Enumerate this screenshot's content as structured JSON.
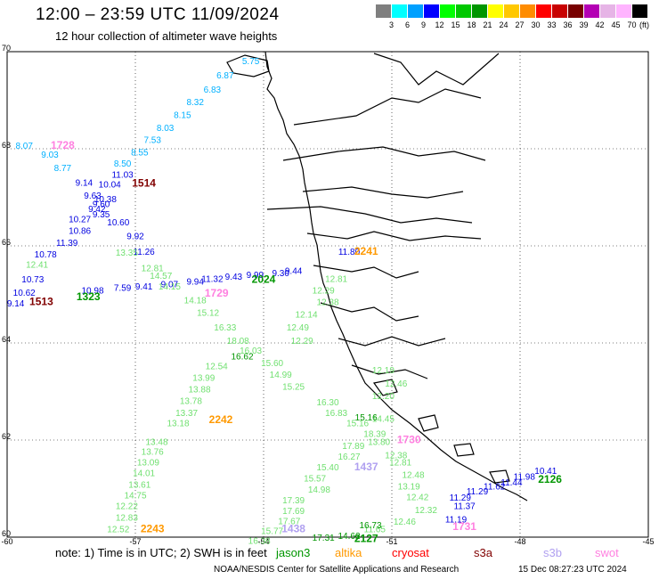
{
  "header": {
    "title": "12:00 – 23:59 UTC 11/09/2024",
    "subtitle": "12 hour collection of altimeter wave heights"
  },
  "colorbar": {
    "colors": [
      "#7f7f7f",
      "#00ffff",
      "#00a0ff",
      "#0000ff",
      "#00ff00",
      "#00c800",
      "#009600",
      "#ffff00",
      "#ffc800",
      "#ff8c00",
      "#ff0000",
      "#c80000",
      "#780000",
      "#b400b4",
      "#e6b4e6",
      "#ffb4ff",
      "#000000"
    ],
    "labels": [
      "3",
      "6",
      "9",
      "12",
      "15",
      "18",
      "21",
      "24",
      "27",
      "30",
      "33",
      "36",
      "39",
      "42",
      "45",
      "70"
    ],
    "unit": "(ft)"
  },
  "map": {
    "lat_ticks": [
      "70",
      "68",
      "66",
      "64",
      "62",
      "60"
    ],
    "lon_ticks": [
      "-60",
      "-57",
      "-54",
      "-51",
      "-48",
      "-45"
    ],
    "tracks": [
      {
        "color": "#00b0ff",
        "points": [
          {
            "lat": 68.0,
            "lon": -59.6,
            "v": "8.07"
          },
          {
            "lat": 69.74,
            "lon": -54.3,
            "v": "5.75"
          },
          {
            "lat": 69.45,
            "lon": -54.9,
            "v": "6.87"
          },
          {
            "lat": 69.16,
            "lon": -55.2,
            "v": "6.83"
          },
          {
            "lat": 68.9,
            "lon": -55.6,
            "v": "8.32"
          },
          {
            "lat": 68.63,
            "lon": -55.9,
            "v": "8.15"
          },
          {
            "lat": 68.37,
            "lon": -56.3,
            "v": "8.03"
          },
          {
            "lat": 68.12,
            "lon": -56.6,
            "v": "7.53"
          },
          {
            "lat": 67.86,
            "lon": -56.9,
            "v": "8.55"
          },
          {
            "lat": 67.63,
            "lon": -57.3,
            "v": "8.50"
          },
          {
            "lat": 67.82,
            "lon": -59.0,
            "v": "9.03"
          },
          {
            "lat": 67.54,
            "lon": -58.7,
            "v": "8.77"
          }
        ]
      },
      {
        "color": "#ff80e0",
        "points": [
          {
            "lat": 68.0,
            "lon": -58.7,
            "v": "1728",
            "id": true
          }
        ]
      },
      {
        "color": "#0000e0",
        "points": [
          {
            "lat": 67.24,
            "lon": -58.2,
            "v": "9.14"
          },
          {
            "lat": 67.4,
            "lon": -57.3,
            "v": "11.03"
          },
          {
            "lat": 67.2,
            "lon": -57.6,
            "v": "10.04"
          },
          {
            "lat": 66.97,
            "lon": -58.0,
            "v": "9.63"
          },
          {
            "lat": 66.9,
            "lon": -57.7,
            "v": "10.38"
          },
          {
            "lat": 66.8,
            "lon": -57.8,
            "v": "9.60"
          },
          {
            "lat": 66.7,
            "lon": -57.9,
            "v": "9.42"
          },
          {
            "lat": 66.59,
            "lon": -57.8,
            "v": "9.35"
          },
          {
            "lat": 66.49,
            "lon": -58.3,
            "v": "10.27"
          },
          {
            "lat": 66.42,
            "lon": -57.4,
            "v": "10.60"
          },
          {
            "lat": 66.25,
            "lon": -58.3,
            "v": "10.86"
          },
          {
            "lat": 66.14,
            "lon": -57.0,
            "v": "9.92"
          },
          {
            "lat": 66.0,
            "lon": -58.6,
            "v": "11.39"
          },
          {
            "lat": 65.76,
            "lon": -59.1,
            "v": "10.78"
          },
          {
            "lat": 65.25,
            "lon": -59.4,
            "v": "10.73"
          },
          {
            "lat": 64.97,
            "lon": -59.6,
            "v": "10.62"
          },
          {
            "lat": 64.75,
            "lon": -59.8,
            "v": "9.14"
          },
          {
            "lat": 65.02,
            "lon": -58.0,
            "v": "10.98"
          },
          {
            "lat": 65.07,
            "lon": -57.3,
            "v": "7.59"
          },
          {
            "lat": 65.1,
            "lon": -56.8,
            "v": "9.41"
          },
          {
            "lat": 65.15,
            "lon": -56.2,
            "v": "9.07"
          },
          {
            "lat": 65.2,
            "lon": -55.6,
            "v": "9.94"
          },
          {
            "lat": 65.26,
            "lon": -55.2,
            "v": "11.32"
          },
          {
            "lat": 65.3,
            "lon": -54.7,
            "v": "9.43"
          },
          {
            "lat": 65.34,
            "lon": -54.2,
            "v": "9.99"
          },
          {
            "lat": 65.38,
            "lon": -53.6,
            "v": "9.30"
          },
          {
            "lat": 65.42,
            "lon": -53.3,
            "v": "9.44"
          },
          {
            "lat": 65.82,
            "lon": -56.8,
            "v": "11.26"
          },
          {
            "lat": 65.82,
            "lon": -52.0,
            "v": "11.80"
          },
          {
            "lat": 60.88,
            "lon": -49.0,
            "v": "11.29"
          },
          {
            "lat": 60.98,
            "lon": -48.6,
            "v": "11.62"
          },
          {
            "lat": 61.06,
            "lon": -48.2,
            "v": "11.44"
          },
          {
            "lat": 61.18,
            "lon": -47.9,
            "v": "11.98"
          },
          {
            "lat": 61.3,
            "lon": -47.4,
            "v": "10.41"
          },
          {
            "lat": 60.58,
            "lon": -49.3,
            "v": "11.37"
          },
          {
            "lat": 60.3,
            "lon": -49.5,
            "v": "11.19"
          },
          {
            "lat": 60.75,
            "lon": -49.4,
            "v": "11.29"
          }
        ]
      },
      {
        "color": "#800000",
        "points": [
          {
            "lat": 67.22,
            "lon": -56.8,
            "v": "1514",
            "id": true
          },
          {
            "lat": 64.78,
            "lon": -59.2,
            "v": "1513",
            "id": true
          }
        ]
      },
      {
        "color": "#70e070",
        "points": [
          {
            "lat": 65.8,
            "lon": -57.2,
            "v": "13.35"
          },
          {
            "lat": 65.55,
            "lon": -59.3,
            "v": "12.41"
          },
          {
            "lat": 65.48,
            "lon": -56.6,
            "v": "12.81"
          },
          {
            "lat": 65.32,
            "lon": -56.4,
            "v": "14.57"
          },
          {
            "lat": 65.1,
            "lon": -56.2,
            "v": "14.15"
          },
          {
            "lat": 64.82,
            "lon": -55.6,
            "v": "14.18"
          },
          {
            "lat": 64.56,
            "lon": -55.3,
            "v": "15.12"
          },
          {
            "lat": 64.26,
            "lon": -54.9,
            "v": "16.33"
          },
          {
            "lat": 63.98,
            "lon": -54.6,
            "v": "18.08"
          },
          {
            "lat": 63.78,
            "lon": -54.3,
            "v": "16.03"
          },
          {
            "lat": 63.46,
            "lon": -55.1,
            "v": "12.54"
          },
          {
            "lat": 63.22,
            "lon": -55.4,
            "v": "13.99"
          },
          {
            "lat": 62.98,
            "lon": -55.5,
            "v": "13.88"
          },
          {
            "lat": 62.74,
            "lon": -55.7,
            "v": "13.78"
          },
          {
            "lat": 62.5,
            "lon": -55.8,
            "v": "13.37"
          },
          {
            "lat": 62.28,
            "lon": -56.0,
            "v": "13.18"
          },
          {
            "lat": 61.9,
            "lon": -56.5,
            "v": "13.48"
          },
          {
            "lat": 61.7,
            "lon": -56.6,
            "v": "13.76"
          },
          {
            "lat": 61.48,
            "lon": -56.7,
            "v": "13.09"
          },
          {
            "lat": 61.26,
            "lon": -56.8,
            "v": "14.01"
          },
          {
            "lat": 61.02,
            "lon": -56.9,
            "v": "13.61"
          },
          {
            "lat": 60.8,
            "lon": -57.0,
            "v": "14.75"
          },
          {
            "lat": 60.58,
            "lon": -57.2,
            "v": "12.22"
          },
          {
            "lat": 60.34,
            "lon": -57.2,
            "v": "12.83"
          },
          {
            "lat": 60.1,
            "lon": -57.4,
            "v": "12.52"
          },
          {
            "lat": 65.26,
            "lon": -52.3,
            "v": "12.81"
          },
          {
            "lat": 65.02,
            "lon": -52.6,
            "v": "12.29"
          },
          {
            "lat": 64.78,
            "lon": -52.5,
            "v": "12.38"
          },
          {
            "lat": 64.52,
            "lon": -53.0,
            "v": "12.14"
          },
          {
            "lat": 64.26,
            "lon": -53.2,
            "v": "12.49"
          },
          {
            "lat": 63.98,
            "lon": -53.1,
            "v": "12.29"
          },
          {
            "lat": 63.52,
            "lon": -53.8,
            "v": "15.60"
          },
          {
            "lat": 63.28,
            "lon": -53.6,
            "v": "14.99"
          },
          {
            "lat": 63.04,
            "lon": -53.3,
            "v": "15.25"
          },
          {
            "lat": 62.72,
            "lon": -52.5,
            "v": "16.30"
          },
          {
            "lat": 62.5,
            "lon": -52.3,
            "v": "16.83"
          },
          {
            "lat": 62.28,
            "lon": -51.8,
            "v": "15.16"
          },
          {
            "lat": 62.06,
            "lon": -51.4,
            "v": "18.39"
          },
          {
            "lat": 61.82,
            "lon": -51.9,
            "v": "17.89"
          },
          {
            "lat": 61.6,
            "lon": -52.0,
            "v": "16.27"
          },
          {
            "lat": 61.38,
            "lon": -52.5,
            "v": "15.40"
          },
          {
            "lat": 61.15,
            "lon": -52.8,
            "v": "15.57"
          },
          {
            "lat": 60.92,
            "lon": -52.7,
            "v": "14.98"
          },
          {
            "lat": 60.7,
            "lon": -53.3,
            "v": "17.39"
          },
          {
            "lat": 60.48,
            "lon": -53.3,
            "v": "17.69"
          },
          {
            "lat": 60.27,
            "lon": -53.4,
            "v": "17.67"
          },
          {
            "lat": 60.06,
            "lon": -53.8,
            "v": "15.77"
          },
          {
            "lat": 59.86,
            "lon": -54.1,
            "v": "16.38"
          },
          {
            "lat": 63.38,
            "lon": -51.2,
            "v": "12.19"
          },
          {
            "lat": 63.1,
            "lon": -50.9,
            "v": "12.46"
          },
          {
            "lat": 62.84,
            "lon": -51.2,
            "v": "12.20"
          },
          {
            "lat": 62.38,
            "lon": -51.2,
            "v": "14.45"
          },
          {
            "lat": 61.9,
            "lon": -51.3,
            "v": "13.80"
          },
          {
            "lat": 61.62,
            "lon": -50.9,
            "v": "12.38"
          },
          {
            "lat": 61.48,
            "lon": -50.8,
            "v": "12.81"
          },
          {
            "lat": 61.22,
            "lon": -50.5,
            "v": "12.48"
          },
          {
            "lat": 60.98,
            "lon": -50.6,
            "v": "13.19"
          },
          {
            "lat": 60.76,
            "lon": -50.4,
            "v": "12.42"
          },
          {
            "lat": 60.5,
            "lon": -50.2,
            "v": "12.32"
          },
          {
            "lat": 60.26,
            "lon": -50.7,
            "v": "12.46"
          },
          {
            "lat": 60.1,
            "lon": -51.4,
            "v": "11.65"
          }
        ]
      },
      {
        "color": "#009600",
        "points": [
          {
            "lat": 64.88,
            "lon": -58.1,
            "v": "1323",
            "id": true
          },
          {
            "lat": 65.24,
            "lon": -54.0,
            "v": "2024",
            "id": true
          },
          {
            "lat": 59.9,
            "lon": -51.6,
            "v": "2127",
            "id": true
          },
          {
            "lat": 61.12,
            "lon": -47.3,
            "v": "2126",
            "id": true
          },
          {
            "lat": 63.66,
            "lon": -54.5,
            "v": "16.62"
          },
          {
            "lat": 62.4,
            "lon": -51.6,
            "v": "15.16"
          },
          {
            "lat": 60.18,
            "lon": -51.5,
            "v": "16.73"
          },
          {
            "lat": 59.93,
            "lon": -52.6,
            "v": "17.31"
          },
          {
            "lat": 59.96,
            "lon": -52.0,
            "v": "14.62"
          }
        ]
      },
      {
        "color": "#ff80e0",
        "points": [
          {
            "lat": 64.95,
            "lon": -55.1,
            "v": "1729",
            "id": true
          },
          {
            "lat": 60.15,
            "lon": -49.3,
            "v": "1731",
            "id": true
          },
          {
            "lat": 61.94,
            "lon": -50.6,
            "v": "1730",
            "id": true
          }
        ]
      },
      {
        "color": "#ff9900",
        "points": [
          {
            "lat": 65.82,
            "lon": -51.6,
            "v": "2241",
            "id": true
          },
          {
            "lat": 62.35,
            "lon": -55.0,
            "v": "2242",
            "id": true
          },
          {
            "lat": 60.1,
            "lon": -56.6,
            "v": "2243",
            "id": true
          }
        ]
      },
      {
        "color": "#b0a0f0",
        "points": [
          {
            "lat": 61.38,
            "lon": -51.6,
            "v": "1437",
            "id": true
          },
          {
            "lat": 60.1,
            "lon": -53.3,
            "v": "1438",
            "id": true
          }
        ]
      }
    ]
  },
  "footer": {
    "note": "note:  1) Time is in UTC;  2) SWH is in feet",
    "legend": [
      {
        "label": "jason3",
        "color": "#009600"
      },
      {
        "label": "altika",
        "color": "#ff9900"
      },
      {
        "label": "cryosat",
        "color": "#ff0000"
      },
      {
        "label": "s3a",
        "color": "#800000"
      },
      {
        "label": "s3b",
        "color": "#b0a0f0"
      },
      {
        "label": "swot",
        "color": "#ff80e0"
      }
    ],
    "credit": "NOAA/NESDIS Center for Satellite Applications and Research",
    "timestamp": "15 Dec 08:27:23 UTC 2024"
  }
}
